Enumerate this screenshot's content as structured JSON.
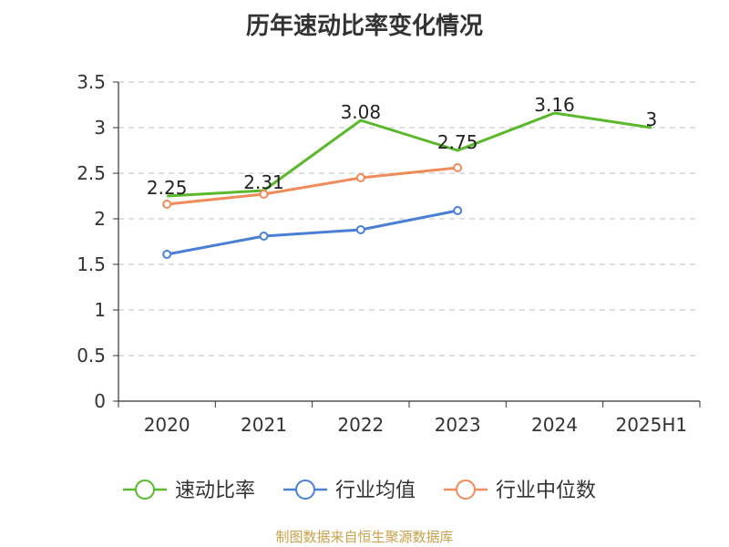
{
  "title": "历年速动比率变化情况",
  "source": "制图数据来自恒生聚源数据库",
  "chart_data": {
    "type": "line",
    "categories": [
      "2020",
      "2021",
      "2022",
      "2023",
      "2024",
      "2025H1"
    ],
    "ylim": [
      0,
      3.5
    ],
    "yticks": [
      "0",
      "0.5",
      "1",
      "1.5",
      "2",
      "2.5",
      "3",
      "3.5"
    ],
    "grid": true,
    "legend_position": "bottom",
    "series": [
      {
        "name": "速动比率",
        "color": "#5ab82b",
        "values": [
          2.25,
          2.31,
          3.08,
          2.75,
          3.16,
          3
        ],
        "labels": [
          "2.25",
          "2.31",
          "3.08",
          "2.75",
          "3.16",
          "3"
        ],
        "markers": false
      },
      {
        "name": "行业均值",
        "color": "#4a7fd6",
        "values": [
          1.61,
          1.81,
          1.88,
          2.09,
          null,
          null
        ],
        "markers": true
      },
      {
        "name": "行业中位数",
        "color": "#f08c5a",
        "values": [
          2.16,
          2.27,
          2.45,
          2.56,
          null,
          null
        ],
        "markers": true
      }
    ]
  }
}
